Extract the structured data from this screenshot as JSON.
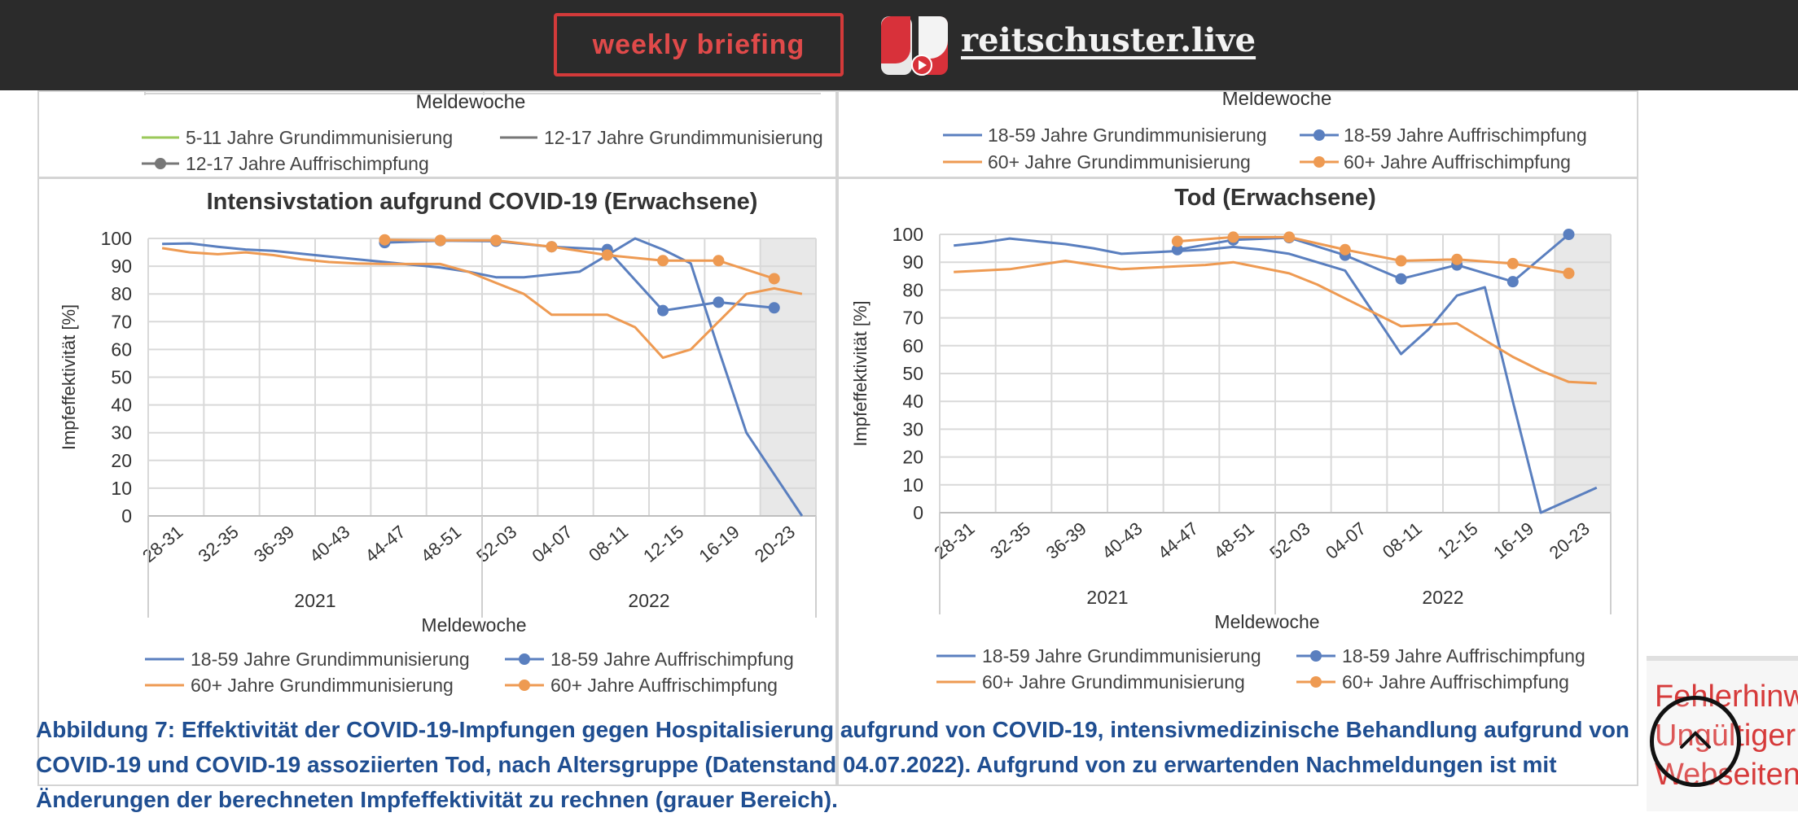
{
  "header": {
    "briefing_label": "weekly briefing",
    "site_name": "reitschuster.live"
  },
  "top_partial": {
    "left": {
      "xlabel": "Meldewoche",
      "legend": [
        "5-11 Jahre Grundimmunisierung",
        "12-17 Jahre Grundimmunisierung",
        "12-17 Jahre Auffrischimpfung"
      ]
    },
    "right": {
      "xlabel": "Meldewoche",
      "legend": [
        "18-59 Jahre Grundimmunisierung",
        "18-59 Jahre Auffrischimpfung",
        "60+ Jahre Grundimmunisierung",
        "60+ Jahre Auffrischimpfung"
      ]
    }
  },
  "colors": {
    "blue": "#5a7fbf",
    "orange": "#ee9a52",
    "green": "#9bc95a",
    "gray": "#777777",
    "grid": "#d9d9d9",
    "shade": "#e8e8e8"
  },
  "chart_data": [
    {
      "type": "line",
      "title": "Intensivstation aufgrund COVID-19 (Erwachsene)",
      "ylabel": "Impfeffektivität [%]",
      "xlabel": "Meldewoche",
      "ylim": [
        0,
        100
      ],
      "yticks": [
        0,
        10,
        20,
        30,
        40,
        50,
        60,
        70,
        80,
        90,
        100
      ],
      "categories": [
        "28-31",
        "32-35",
        "36-39",
        "40-43",
        "44-47",
        "48-51",
        "52-03",
        "04-07",
        "08-11",
        "12-15",
        "16-19",
        "20-23"
      ],
      "years": [
        {
          "label": "2021",
          "from": 0,
          "to": 5
        },
        {
          "label": "2022",
          "from": 6,
          "to": 11
        }
      ],
      "shaded_last": 1,
      "x": [
        0,
        1,
        2,
        3,
        4,
        5,
        6,
        7,
        8,
        9,
        10,
        11,
        12,
        13,
        14,
        15,
        16,
        17,
        18,
        19,
        20,
        21,
        22,
        23
      ],
      "series": [
        {
          "name": "18-59 Jahre Grundimmunisierung",
          "color": "blue",
          "marker": false,
          "values": [
            98,
            98.2,
            97,
            96,
            95.5,
            94.5,
            93.5,
            92.5,
            91.5,
            90.5,
            89.5,
            88,
            86,
            86,
            87,
            88,
            94,
            100,
            96,
            91,
            60,
            30,
            15,
            0
          ]
        },
        {
          "name": "18-59 Jahre Auffrischimpfung",
          "color": "blue",
          "marker": true,
          "values": [
            null,
            null,
            null,
            null,
            null,
            null,
            null,
            null,
            98.5,
            null,
            99.2,
            null,
            99,
            null,
            97,
            null,
            96,
            null,
            74,
            null,
            77,
            null,
            75,
            null
          ]
        },
        {
          "name": "60+ Jahre Grundimmunisierung",
          "color": "orange",
          "marker": false,
          "values": [
            96.5,
            95,
            94.3,
            95,
            94,
            92.5,
            91.5,
            91,
            90.8,
            90.8,
            90.8,
            88,
            84,
            80,
            72.5,
            72.5,
            72.5,
            68,
            57,
            60,
            70,
            80,
            82,
            80
          ]
        },
        {
          "name": "60+ Jahre Auffrischimpfung",
          "color": "orange",
          "marker": true,
          "values": [
            null,
            null,
            null,
            null,
            null,
            null,
            null,
            null,
            99.5,
            null,
            99.3,
            null,
            99.3,
            null,
            97,
            null,
            94,
            null,
            92,
            null,
            92,
            null,
            85.5,
            null
          ]
        }
      ],
      "legend": [
        "18-59 Jahre Grundimmunisierung",
        "18-59 Jahre Auffrischimpfung",
        "60+ Jahre Grundimmunisierung",
        "60+ Jahre Auffrischimpfung"
      ]
    },
    {
      "type": "line",
      "title": "Tod (Erwachsene)",
      "ylabel": "Impfeffektivität [%]",
      "xlabel": "Meldewoche",
      "ylim": [
        0,
        100
      ],
      "yticks": [
        0,
        10,
        20,
        30,
        40,
        50,
        60,
        70,
        80,
        90,
        100
      ],
      "categories": [
        "28-31",
        "32-35",
        "36-39",
        "40-43",
        "44-47",
        "48-51",
        "52-03",
        "04-07",
        "08-11",
        "12-15",
        "16-19",
        "20-23"
      ],
      "years": [
        {
          "label": "2021",
          "from": 0,
          "to": 5
        },
        {
          "label": "2022",
          "from": 6,
          "to": 11
        }
      ],
      "shaded_last": 1,
      "x": [
        0,
        1,
        2,
        3,
        4,
        5,
        6,
        7,
        8,
        9,
        10,
        11,
        12,
        13,
        14,
        15,
        16,
        17,
        18,
        19,
        20,
        21,
        22,
        23
      ],
      "series": [
        {
          "name": "18-59 Jahre Grundimmunisierung",
          "color": "blue",
          "marker": false,
          "values": [
            96,
            97,
            98.5,
            97.5,
            96.5,
            95,
            93,
            93.5,
            94,
            94.5,
            95.5,
            94.5,
            93,
            90,
            87,
            72,
            57,
            66,
            78,
            81,
            40,
            0,
            4.5,
            9
          ]
        },
        {
          "name": "18-59 Jahre Auffrischimpfung",
          "color": "blue",
          "marker": true,
          "values": [
            null,
            null,
            null,
            null,
            null,
            null,
            null,
            null,
            94.5,
            null,
            98,
            null,
            98.8,
            null,
            92.5,
            null,
            84,
            null,
            89,
            null,
            83,
            null,
            100,
            null
          ]
        },
        {
          "name": "60+ Jahre Grundimmunisierung",
          "color": "orange",
          "marker": false,
          "values": [
            86.5,
            87,
            87.5,
            89,
            90.5,
            89,
            87.5,
            88,
            88.5,
            89,
            90,
            88,
            86,
            82,
            77,
            72,
            67,
            67.5,
            68,
            62,
            56,
            51,
            47,
            46.5
          ]
        },
        {
          "name": "60+ Jahre Auffrischimpfung",
          "color": "orange",
          "marker": true,
          "values": [
            null,
            null,
            null,
            null,
            null,
            null,
            null,
            null,
            97.5,
            null,
            99,
            null,
            99,
            null,
            94.5,
            null,
            90.5,
            null,
            91,
            null,
            89.5,
            null,
            86,
            null
          ]
        }
      ],
      "legend": [
        "18-59 Jahre Grundimmunisierung",
        "18-59 Jahre Auffrischimpfung",
        "60+ Jahre Grundimmunisierung",
        "60+ Jahre Auffrischimpfung"
      ]
    }
  ],
  "caption": "Abbildung 7: Effektivität der COVID-19-Impfungen gegen Hospitalisierung aufgrund von COVID-19, intensivmedizinische Behandlung aufgrund von COVID-19 und COVID-19 assoziierten Tod, nach Altersgruppe (Datenstand 04.07.2022). Aufgrund von zu erwartenden Nachmeldungen ist mit Änderungen der berechneten Impfeffektivität zu rechnen (grauer Bereich).",
  "error_widget": {
    "text": "Fehlerhinweis Website: Ungültiger Webseiteninhalt"
  }
}
